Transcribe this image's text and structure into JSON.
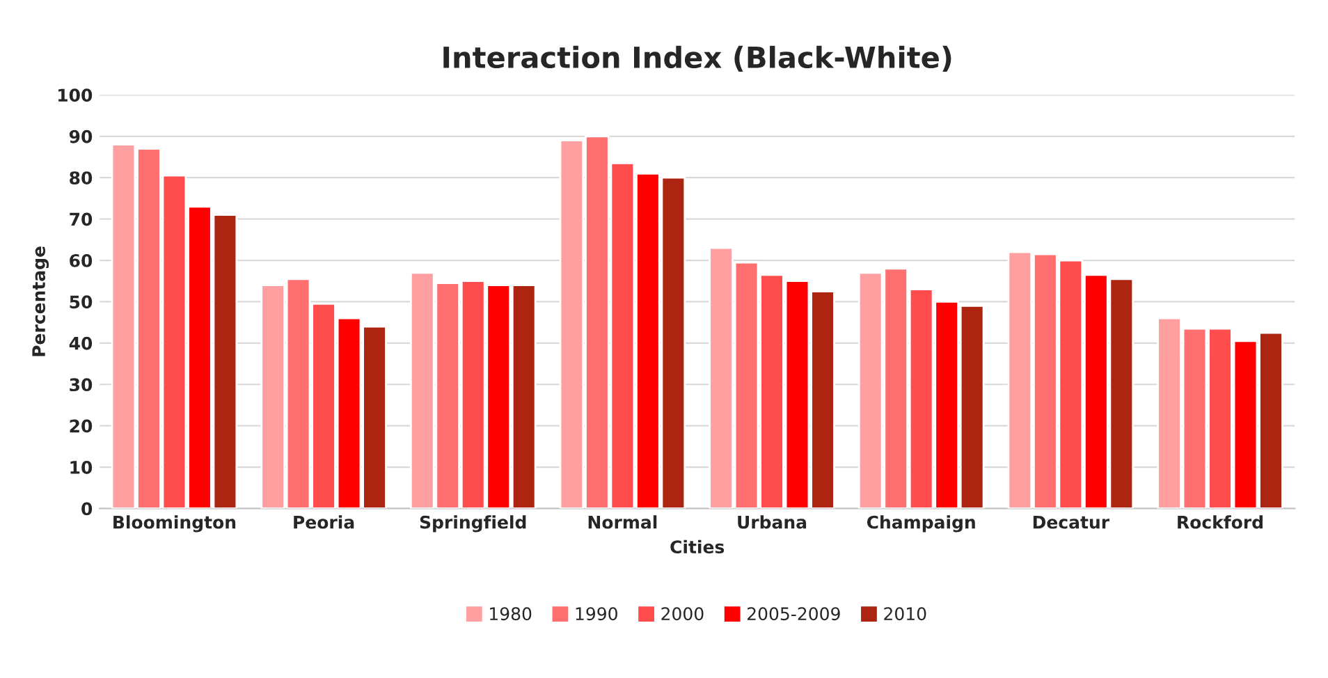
{
  "chart_data": {
    "type": "bar",
    "title": "Interaction Index (Black-White)",
    "xlabel": "Cities",
    "ylabel": "Percentage",
    "categories": [
      "Bloomington",
      "Peoria",
      "Springfield",
      "Normal",
      "Urbana",
      "Champaign",
      "Decatur",
      "Rockford"
    ],
    "series": [
      {
        "name": "1980",
        "color": "#ff9f9f",
        "values": [
          88,
          54,
          57,
          89,
          63,
          57,
          62,
          46
        ]
      },
      {
        "name": "1990",
        "color": "#ff6f6f",
        "values": [
          87,
          55.5,
          54.5,
          90,
          59.5,
          58,
          61.5,
          43.5
        ]
      },
      {
        "name": "2000",
        "color": "#ff4c4c",
        "values": [
          80.5,
          49.5,
          55,
          83.5,
          56.5,
          53,
          60,
          43.5
        ]
      },
      {
        "name": "2005-2009",
        "color": "#ff0000",
        "values": [
          73,
          46,
          54,
          81,
          55,
          50,
          56.5,
          40.5
        ]
      },
      {
        "name": "2010",
        "color": "#ad2411",
        "values": [
          71,
          44,
          54,
          80,
          52.5,
          49,
          55.5,
          42.5
        ]
      }
    ],
    "ylim": [
      0,
      100
    ],
    "yticks": [
      0,
      10,
      20,
      30,
      40,
      50,
      60,
      70,
      80,
      90,
      100
    ],
    "grid": "y",
    "legend": "bottom"
  }
}
